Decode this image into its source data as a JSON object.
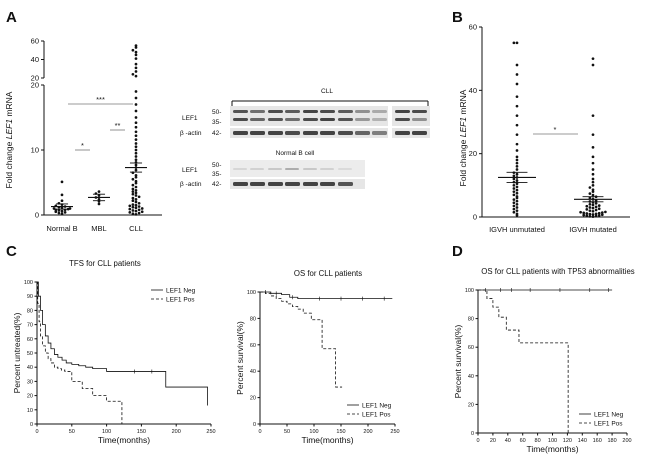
{
  "panels": {
    "A": "A",
    "B": "B",
    "C": "C",
    "D": "D"
  },
  "colors": {
    "ink": "#111111",
    "blot_bg": "#e6e6e6",
    "band": "#3a3a3a"
  },
  "chart_data": [
    {
      "panel": "A",
      "type": "scatter",
      "subtype": "dot-plot-mean-sem",
      "ylabel": "Fold change LEF1 mRNA",
      "ylabel_plain": "Fold change ",
      "ylabel_italic": "LEF1",
      "ylabel_tail": " mRNA",
      "categories": [
        "Normal B",
        "MBL",
        "CLL"
      ],
      "ylim_lower": [
        0,
        20
      ],
      "ylim_upper": [
        20,
        60
      ],
      "yticks_lower": [
        "0",
        "10",
        "20"
      ],
      "yticks_upper": [
        "20",
        "40",
        "60"
      ],
      "means": [
        1.3,
        2.7,
        7.3
      ],
      "sem": [
        0.4,
        0.5,
        0.7
      ],
      "significance": [
        {
          "from": "Normal B",
          "to": "MBL",
          "label": "*"
        },
        {
          "from": "MBL",
          "to": "CLL",
          "label": "**"
        },
        {
          "from": "Normal B",
          "to": "CLL",
          "label": "***"
        }
      ],
      "points": {
        "Normal B": [
          0.2,
          0.3,
          0.4,
          0.5,
          0.6,
          0.7,
          0.8,
          0.8,
          0.9,
          1.0,
          1.0,
          1.1,
          1.2,
          1.3,
          1.4,
          1.6,
          1.8,
          2.2,
          3.1,
          5.1
        ],
        "MBL": [
          1.7,
          2.1,
          2.4,
          2.7,
          3.0,
          3.3,
          3.6
        ],
        "CLL": [
          0.1,
          0.2,
          0.3,
          0.4,
          0.5,
          0.6,
          0.7,
          0.8,
          0.9,
          1.0,
          1.1,
          1.2,
          1.3,
          1.4,
          1.5,
          1.6,
          1.8,
          2.0,
          2.2,
          2.4,
          2.6,
          2.8,
          3.0,
          3.2,
          3.4,
          3.6,
          3.8,
          4.0,
          4.3,
          4.6,
          4.9,
          5.2,
          5.5,
          5.8,
          6.1,
          6.5,
          6.9,
          7.3,
          7.7,
          8.1,
          8.5,
          9.0,
          9.5,
          10.0,
          10.5,
          11.0,
          11.6,
          12.2,
          12.8,
          13.5,
          14.2,
          15.0,
          16.0,
          17.0,
          18.0,
          19.0,
          22,
          24,
          27,
          31,
          35,
          41,
          45,
          48,
          50,
          53,
          55
        ]
      }
    },
    {
      "panel": "A-blot",
      "type": "table",
      "groups": [
        {
          "title": "CLL",
          "rows": [
            {
              "protein": "LEF1",
              "markers": [
                "50-",
                "35-"
              ]
            },
            {
              "protein": "β -actin",
              "markers": [
                "42-"
              ]
            }
          ]
        },
        {
          "title": "Normal B  cell",
          "rows": [
            {
              "protein": "LEF1",
              "markers": [
                "50-",
                "35-"
              ]
            },
            {
              "protein": "β -actin",
              "markers": [
                "42-"
              ]
            }
          ]
        }
      ]
    },
    {
      "panel": "B",
      "type": "scatter",
      "subtype": "dot-plot-mean-sem",
      "ylabel_plain": "Fold change ",
      "ylabel_italic": "LEF1",
      "ylabel_tail": " mRNA",
      "categories": [
        "IGVH unmutated",
        "IGVH mutated"
      ],
      "ylim": [
        0,
        60
      ],
      "yticks": [
        "0",
        "20",
        "40",
        "60"
      ],
      "means": [
        12.5,
        5.6
      ],
      "sem": [
        1.6,
        0.8
      ],
      "significance": [
        {
          "from": "IGVH unmutated",
          "to": "IGVH mutated",
          "label": "*"
        }
      ],
      "points": {
        "IGVH unmutated": [
          0.5,
          1,
          1.5,
          2,
          2.5,
          3,
          3.5,
          4,
          4.5,
          5,
          5.5,
          6,
          6.5,
          7,
          7.5,
          8,
          8.5,
          9,
          9.5,
          10,
          10.5,
          11,
          11.5,
          12,
          12.5,
          13,
          13.5,
          14,
          15,
          16,
          17,
          18,
          19,
          21,
          23,
          26,
          29,
          32,
          35,
          38,
          42,
          45,
          48,
          55,
          55
        ],
        "IGVH mutated": [
          0.1,
          0.2,
          0.3,
          0.4,
          0.5,
          0.6,
          0.7,
          0.8,
          0.9,
          1.0,
          1.1,
          1.2,
          1.3,
          1.4,
          1.5,
          1.6,
          1.8,
          2.0,
          2.2,
          2.4,
          2.6,
          2.8,
          3.0,
          3.2,
          3.4,
          3.6,
          3.8,
          4.0,
          4.3,
          4.6,
          4.9,
          5.2,
          5.6,
          6.0,
          6.4,
          6.9,
          7.4,
          8.0,
          8.6,
          9.3,
          10.0,
          11.0,
          12.0,
          13.5,
          15.0,
          17.0,
          19.0,
          22,
          26,
          32,
          48,
          50
        ]
      }
    },
    {
      "panel": "C-left",
      "type": "line",
      "subtype": "kaplan-meier",
      "title": "TFS for CLL patients",
      "xlabel": "Time(months)",
      "ylabel": "Percent untreated(%)",
      "xlim": [
        0,
        250
      ],
      "ylim": [
        0,
        100
      ],
      "xticks": [
        "0",
        "50",
        "100",
        "150",
        "200",
        "250"
      ],
      "yticks": [
        "0",
        "10",
        "20",
        "30",
        "40",
        "50",
        "60",
        "70",
        "80",
        "90",
        "100"
      ],
      "legend_position": "top-right",
      "series": [
        {
          "name": "LEF1 Neg",
          "dash": "solid",
          "x": [
            0,
            2,
            5,
            8,
            12,
            16,
            20,
            25,
            30,
            36,
            42,
            50,
            60,
            70,
            80,
            100,
            125,
            185,
            245
          ],
          "y": [
            100,
            90,
            80,
            70,
            62,
            57,
            53,
            49,
            47,
            45,
            43,
            42,
            41,
            40,
            39,
            37,
            37,
            26,
            13
          ],
          "censor_x": [
            140,
            165
          ],
          "censor_y": [
            37,
            37
          ]
        },
        {
          "name": "LEF1 Pos",
          "dash": "dashed",
          "x": [
            0,
            1,
            3,
            5,
            8,
            12,
            16,
            20,
            25,
            30,
            35,
            40,
            50,
            65,
            80,
            100,
            122
          ],
          "y": [
            100,
            85,
            72,
            62,
            55,
            50,
            46,
            43,
            40,
            39,
            38,
            37,
            30,
            25,
            20,
            16,
            0
          ],
          "censor_x": [],
          "censor_y": []
        }
      ]
    },
    {
      "panel": "C-right",
      "type": "line",
      "subtype": "kaplan-meier",
      "title": "OS for CLL patients",
      "xlabel": "Time(months)",
      "ylabel": "Percent survival(%)",
      "xlim": [
        0,
        250
      ],
      "ylim": [
        0,
        100
      ],
      "xticks": [
        "0",
        "50",
        "100",
        "150",
        "200",
        "250"
      ],
      "yticks": [
        "0",
        "20",
        "40",
        "60",
        "80",
        "100"
      ],
      "legend_position": "bottom-right",
      "series": [
        {
          "name": "LEF1 Neg",
          "dash": "solid",
          "x": [
            0,
            20,
            40,
            55,
            70,
            90,
            245
          ],
          "y": [
            100,
            99,
            98,
            96,
            95,
            95,
            95
          ],
          "censor_x": [
            10,
            30,
            60,
            110,
            150,
            190,
            230
          ],
          "censor_y": [
            100,
            99,
            96,
            95,
            95,
            95,
            95
          ]
        },
        {
          "name": "LEF1 Pos",
          "dash": "dashed",
          "x": [
            0,
            10,
            20,
            30,
            40,
            50,
            60,
            70,
            80,
            95,
            115,
            140,
            152
          ],
          "y": [
            100,
            99,
            97,
            95,
            93,
            91,
            89,
            87,
            84,
            79,
            57,
            28,
            28
          ],
          "censor_x": [],
          "censor_y": []
        }
      ]
    },
    {
      "panel": "D",
      "type": "line",
      "subtype": "kaplan-meier",
      "title": "OS for CLL patients with TP53 abnormalities",
      "xlabel": "Time(months)",
      "ylabel": "Percent survival(%)",
      "xlim": [
        0,
        200
      ],
      "ylim": [
        0,
        100
      ],
      "xticks": [
        "0",
        "20",
        "40",
        "60",
        "80",
        "100",
        "120",
        "140",
        "160",
        "180",
        "200"
      ],
      "yticks": [
        "0",
        "20",
        "40",
        "60",
        "80",
        "100"
      ],
      "legend_position": "bottom-right",
      "series": [
        {
          "name": "LEF1 Neg",
          "dash": "solid",
          "x": [
            0,
            180
          ],
          "y": [
            100,
            100
          ],
          "censor_x": [
            10,
            30,
            45,
            70,
            110,
            150,
            175
          ],
          "censor_y": [
            100,
            100,
            100,
            100,
            100,
            100,
            100
          ]
        },
        {
          "name": "LEF1 Pos",
          "dash": "dashed",
          "x": [
            0,
            12,
            20,
            28,
            38,
            55,
            120,
            121
          ],
          "y": [
            100,
            94,
            88,
            81,
            72,
            63,
            63,
            0
          ],
          "censor_x": [],
          "censor_y": []
        }
      ]
    }
  ]
}
